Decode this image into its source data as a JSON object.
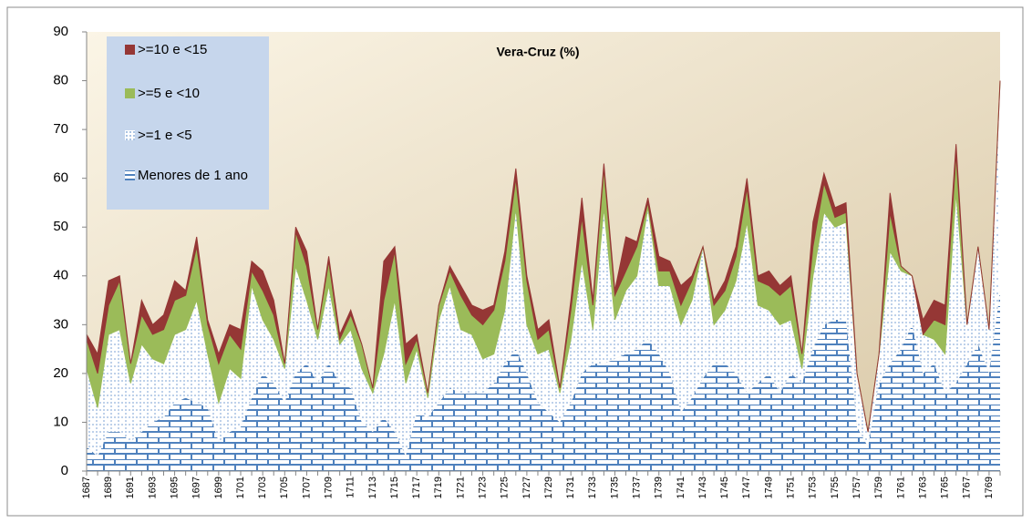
{
  "chart_data": {
    "type": "stacked_area",
    "title": "Vera-Cruz (%)",
    "categories": [
      "1687",
      null,
      "1689",
      null,
      "1691",
      null,
      "1693",
      null,
      "1695",
      null,
      "1697",
      null,
      "1699",
      null,
      "1701",
      null,
      "1703",
      null,
      "1705",
      null,
      "1707",
      null,
      "1709",
      null,
      "1711",
      null,
      "1713",
      null,
      "1715",
      null,
      "1717",
      null,
      "1719",
      null,
      "1721",
      null,
      "1723",
      null,
      "1725",
      null,
      "1727",
      null,
      "1729",
      null,
      "1731",
      null,
      "1733",
      null,
      "1735",
      null,
      "1737",
      null,
      "1739",
      null,
      "1741",
      null,
      "1743",
      null,
      "1745",
      null,
      "1747",
      null,
      "1749",
      null,
      "1751",
      null,
      "1753",
      null,
      "1755",
      null,
      "1757",
      null,
      "1759",
      null,
      "1761",
      null,
      "1763",
      null,
      "1765",
      null,
      "1767",
      null,
      "1769",
      null
    ],
    "series": [
      {
        "name": "Menores de 1 ano",
        "color": "#4f81bd",
        "values": [
          5,
          3,
          8,
          8,
          6,
          8,
          10,
          11,
          14,
          15,
          14,
          13,
          6,
          8,
          9,
          15,
          20,
          18,
          14,
          20,
          22,
          18,
          22,
          18,
          17,
          10,
          8,
          11,
          8,
          3,
          12,
          11,
          14,
          17,
          16,
          16,
          16,
          18,
          22,
          25,
          20,
          14,
          12,
          10,
          14,
          20,
          22,
          22,
          23,
          24,
          25,
          27,
          24,
          20,
          12,
          15,
          19,
          22,
          22,
          20,
          16,
          18,
          20,
          16,
          20,
          18,
          25,
          30,
          31,
          31,
          9,
          5,
          18,
          22,
          25,
          30,
          20,
          22,
          16,
          18,
          22,
          26,
          20,
          37
        ]
      },
      {
        "name": ">=1 e <5",
        "color": "#ffffff",
        "values": [
          16,
          10,
          20,
          21,
          12,
          18,
          13,
          11,
          14,
          14,
          21,
          11,
          8,
          13,
          10,
          23,
          11,
          9,
          7,
          22,
          13,
          9,
          16,
          8,
          12,
          11,
          8,
          13,
          27,
          15,
          13,
          4,
          17,
          21,
          13,
          12,
          7,
          6,
          11,
          29,
          10,
          10,
          13,
          6,
          13,
          23,
          7,
          32,
          8,
          13,
          15,
          27,
          14,
          18,
          18,
          20,
          27,
          8,
          11,
          19,
          35,
          16,
          13,
          14,
          11,
          3,
          15,
          23,
          19,
          20,
          11,
          3,
          6,
          23,
          16,
          10,
          8,
          5,
          8,
          39,
          8,
          20,
          9,
          43
        ]
      },
      {
        "name": ">=5 e <10",
        "color": "#9bbb59",
        "values": [
          6,
          7,
          6,
          10,
          4,
          6,
          5,
          7,
          7,
          7,
          11,
          6,
          8,
          7,
          6,
          3,
          6,
          5,
          1,
          7,
          7,
          2,
          5,
          1,
          3,
          5,
          1,
          11,
          10,
          4,
          2,
          1,
          3,
          3,
          7,
          4,
          7,
          9,
          10,
          6,
          9,
          3,
          4,
          1,
          6,
          9,
          5,
          8,
          5,
          4,
          6,
          1,
          3,
          3,
          4,
          4,
          0,
          4,
          4,
          5,
          7,
          5,
          5,
          6,
          7,
          3,
          6,
          6,
          2,
          2,
          0,
          0,
          0,
          8,
          1,
          0,
          0,
          4,
          6,
          8,
          0,
          0,
          0,
          0
        ]
      },
      {
        "name": ">=10 e <15",
        "color": "#953735",
        "values": [
          1,
          4,
          5,
          1,
          0,
          3,
          2,
          3,
          4,
          1,
          2,
          1,
          2,
          2,
          4,
          2,
          4,
          3,
          0,
          1,
          3,
          0,
          1,
          1,
          1,
          0,
          0,
          8,
          1,
          4,
          1,
          0,
          0,
          1,
          2,
          2,
          3,
          1,
          2,
          2,
          1,
          2,
          2,
          0,
          2,
          4,
          1,
          1,
          1,
          7,
          1,
          1,
          3,
          2,
          4,
          1,
          0,
          1,
          2,
          2,
          2,
          1,
          3,
          2,
          2,
          0,
          5,
          2,
          2,
          2,
          0,
          0,
          0,
          4,
          0,
          0,
          3,
          4,
          4,
          2,
          0,
          0,
          0,
          0
        ]
      }
    ],
    "ylim": [
      0,
      90
    ],
    "yticks": [
      0,
      10,
      20,
      30,
      40,
      50,
      60,
      70,
      80,
      90
    ]
  }
}
